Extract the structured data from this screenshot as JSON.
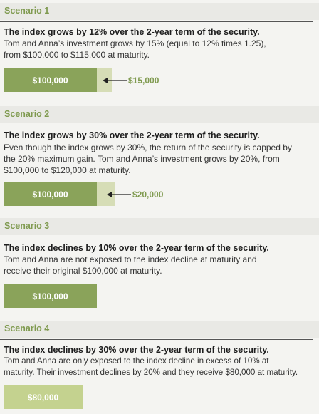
{
  "scenarios": [
    {
      "title": "Scenario 1",
      "heading": "The index grows by 12% over the 2-year term of the security.",
      "body_lines": [
        "Tom and Anna’s investment grows by 15% (equal to 12% times 1.25),",
        "from $100,000 to $115,000 at maturity."
      ],
      "base_label": "$100,000",
      "gain_label": "$15,000"
    },
    {
      "title": "Scenario 2",
      "heading": "The index grows by 30% over the 2-year term of the security.",
      "body_lines": [
        "Even though the index grows by 30%, the return of the security is capped by",
        "the 20% maximum gain. Tom and Anna’s investment grows by 20%, from",
        "$100,000 to $120,000 at maturity."
      ],
      "base_label": "$100,000",
      "gain_label": "$20,000"
    },
    {
      "title": "Scenario 3",
      "heading": "The index declines by 10% over the 2-year term of the security.",
      "body_lines": [
        "Tom and Anna are not exposed to the index decline at maturity and",
        "receive their original $100,000 at maturity."
      ],
      "base_label": "$100,000"
    },
    {
      "title": "Scenario 4",
      "heading": "The index declines by 30% over the 2-year term of the security.",
      "body_lines": [
        "Tom and Anna are only exposed to the index decline in excess of 10% at",
        "maturity. Their investment declines by 20% and they receive $80,000 at maturity."
      ],
      "base_label": "$80,000"
    }
  ],
  "colors": {
    "accent": "#7f9a4f",
    "bar": "#8aa35a",
    "bar_extension": "#d6ddb6",
    "bar_reduced": "#c4d28f"
  }
}
